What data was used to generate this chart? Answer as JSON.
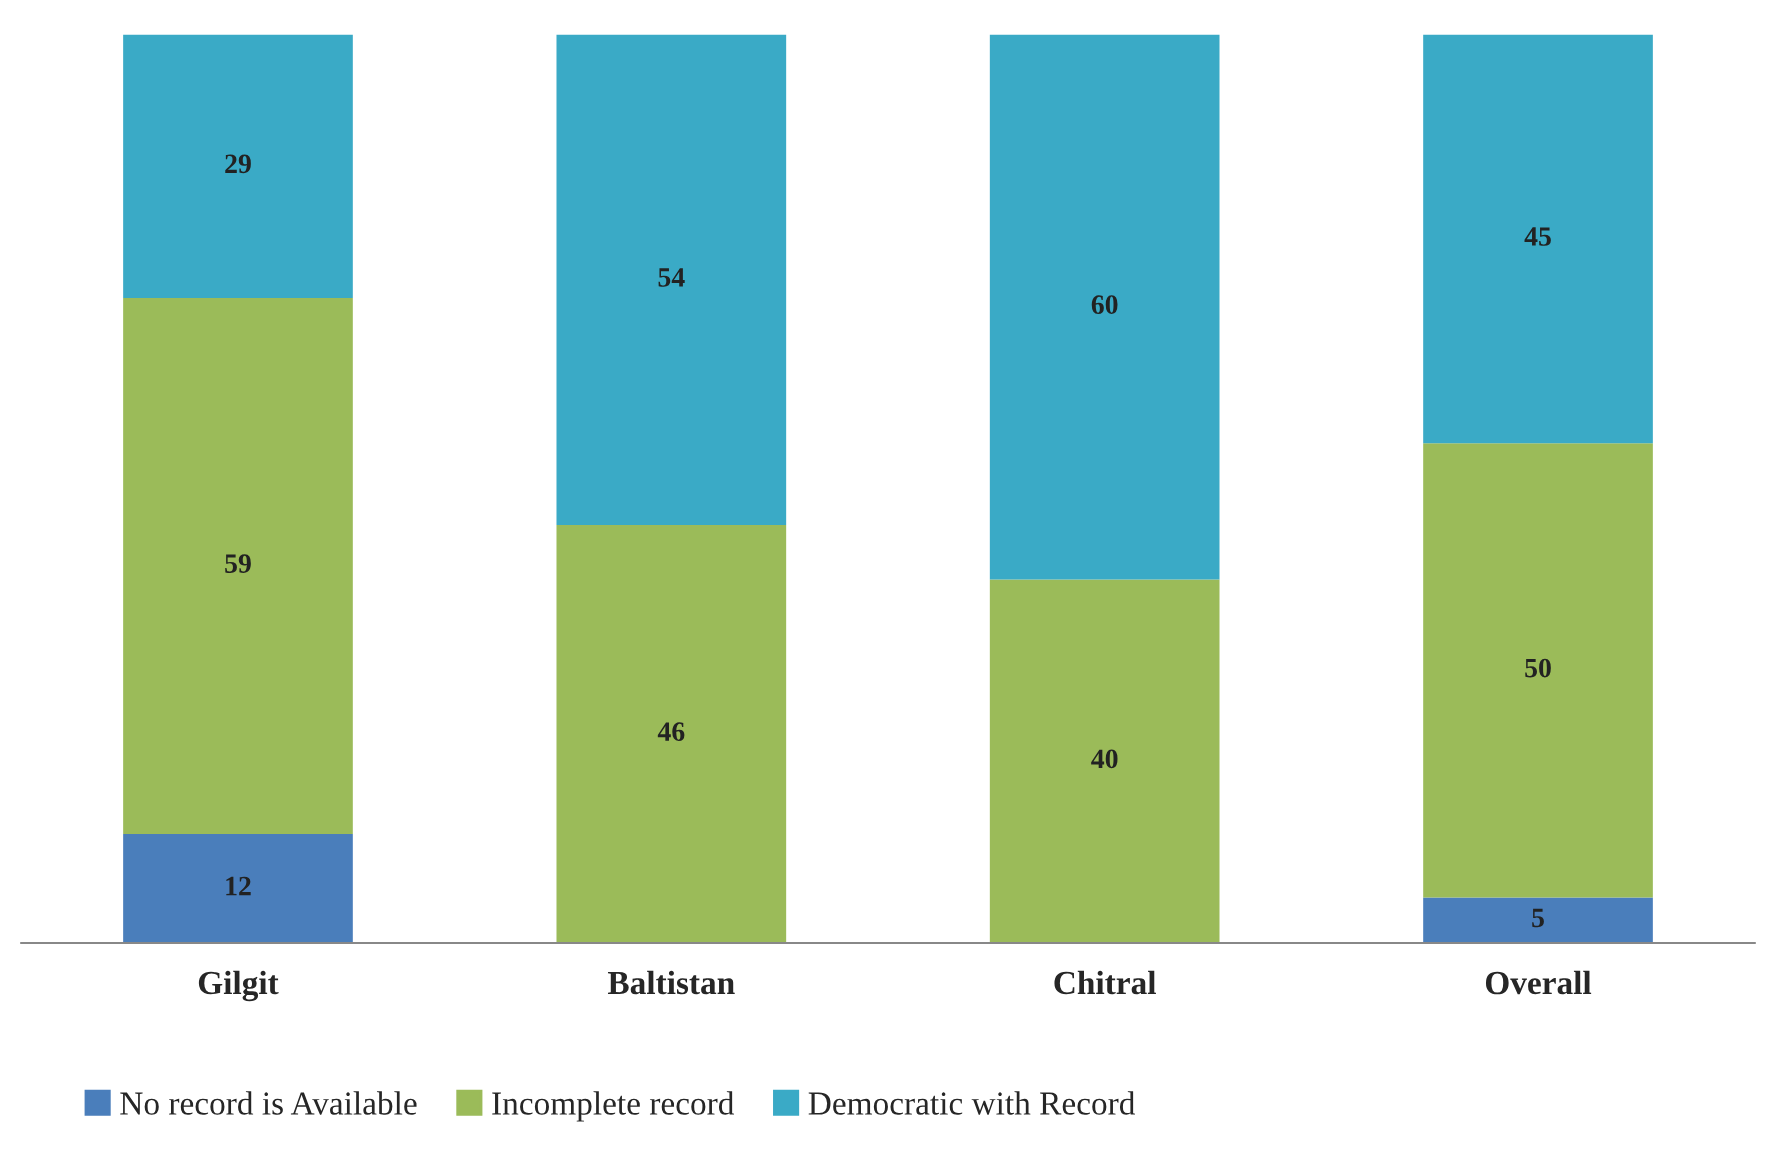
{
  "chart_data": {
    "type": "bar",
    "stacked": true,
    "data_labels": true,
    "legend": "bottom",
    "grid": false,
    "categories": [
      "Gilgit",
      "Baltistan",
      "Chitral",
      "Overall"
    ],
    "series": [
      {
        "name": "No record is Available",
        "color": "#4a7ebb",
        "values": [
          12,
          null,
          null,
          5
        ]
      },
      {
        "name": "Incomplete record",
        "color": "#9bbb59",
        "values": [
          59,
          46,
          40,
          50
        ]
      },
      {
        "name": "Democratic with Record",
        "color": "#3aaac6",
        "values": [
          29,
          54,
          60,
          45
        ]
      }
    ]
  }
}
